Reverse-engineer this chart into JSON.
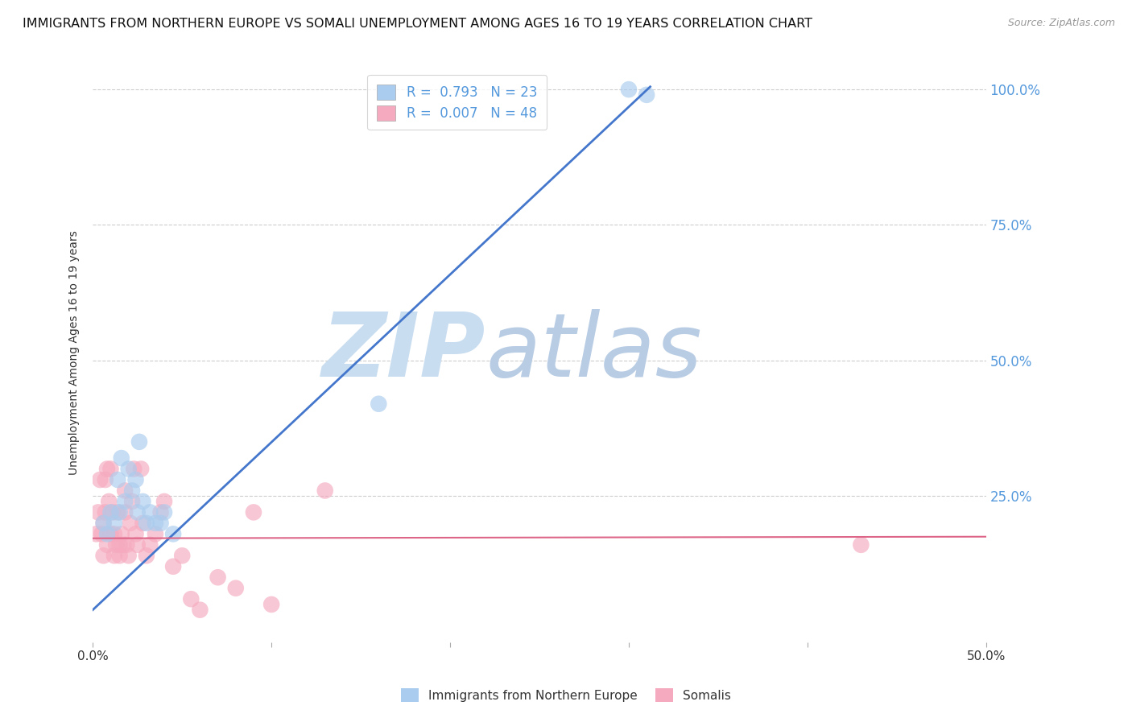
{
  "title": "IMMIGRANTS FROM NORTHERN EUROPE VS SOMALI UNEMPLOYMENT AMONG AGES 16 TO 19 YEARS CORRELATION CHART",
  "source": "Source: ZipAtlas.com",
  "ylabel": "Unemployment Among Ages 16 to 19 years",
  "xlim": [
    0.0,
    0.5
  ],
  "ylim": [
    -0.02,
    1.05
  ],
  "yticks_right": [
    0.25,
    0.5,
    0.75,
    1.0
  ],
  "ytick_labels_right": [
    "25.0%",
    "50.0%",
    "75.0%",
    "100.0%"
  ],
  "xtick_positions": [
    0.0,
    0.1,
    0.2,
    0.3,
    0.4,
    0.5
  ],
  "xtick_labels": [
    "0.0%",
    "",
    "",
    "",
    "",
    "50.0%"
  ],
  "blue_R": 0.793,
  "blue_N": 23,
  "pink_R": 0.007,
  "pink_N": 48,
  "blue_color": "#aaccee",
  "pink_color": "#f5aabf",
  "blue_line_color": "#4477cc",
  "pink_line_color": "#dd6688",
  "blue_scatter_x": [
    0.006,
    0.008,
    0.01,
    0.012,
    0.014,
    0.015,
    0.016,
    0.018,
    0.02,
    0.022,
    0.024,
    0.025,
    0.026,
    0.028,
    0.03,
    0.032,
    0.035,
    0.038,
    0.04,
    0.045,
    0.16,
    0.3,
    0.31
  ],
  "blue_scatter_y": [
    0.2,
    0.18,
    0.22,
    0.2,
    0.28,
    0.22,
    0.32,
    0.24,
    0.3,
    0.26,
    0.28,
    0.22,
    0.35,
    0.24,
    0.2,
    0.22,
    0.2,
    0.2,
    0.22,
    0.18,
    0.42,
    1.0,
    0.99
  ],
  "pink_scatter_x": [
    0.002,
    0.003,
    0.004,
    0.005,
    0.006,
    0.006,
    0.007,
    0.007,
    0.008,
    0.008,
    0.009,
    0.01,
    0.01,
    0.011,
    0.012,
    0.012,
    0.013,
    0.014,
    0.015,
    0.015,
    0.016,
    0.017,
    0.018,
    0.018,
    0.019,
    0.02,
    0.021,
    0.022,
    0.023,
    0.024,
    0.025,
    0.027,
    0.028,
    0.03,
    0.032,
    0.035,
    0.038,
    0.04,
    0.045,
    0.05,
    0.055,
    0.06,
    0.07,
    0.08,
    0.09,
    0.1,
    0.13,
    0.43
  ],
  "pink_scatter_y": [
    0.18,
    0.22,
    0.28,
    0.18,
    0.14,
    0.2,
    0.28,
    0.22,
    0.16,
    0.3,
    0.24,
    0.18,
    0.3,
    0.22,
    0.14,
    0.18,
    0.16,
    0.22,
    0.14,
    0.16,
    0.18,
    0.16,
    0.22,
    0.26,
    0.16,
    0.14,
    0.2,
    0.24,
    0.3,
    0.18,
    0.16,
    0.3,
    0.2,
    0.14,
    0.16,
    0.18,
    0.22,
    0.24,
    0.12,
    0.14,
    0.06,
    0.04,
    0.1,
    0.08,
    0.22,
    0.05,
    0.26,
    0.16
  ],
  "blue_line_x0": 0.0,
  "blue_line_y0": 0.04,
  "blue_line_x1": 0.312,
  "blue_line_y1": 1.005,
  "pink_line_x0": 0.0,
  "pink_line_y0": 0.172,
  "pink_line_x1": 0.5,
  "pink_line_y1": 0.175,
  "watermark_zip": "ZIP",
  "watermark_atlas": "atlas",
  "watermark_color_zip": "#c8ddf0",
  "watermark_color_atlas": "#b8cce4",
  "background_color": "#ffffff",
  "grid_color": "#cccccc",
  "legend_blue_label": "Immigrants from Northern Europe",
  "legend_pink_label": "Somalis",
  "title_fontsize": 11.5,
  "source_fontsize": 9,
  "legend_fontsize": 12
}
